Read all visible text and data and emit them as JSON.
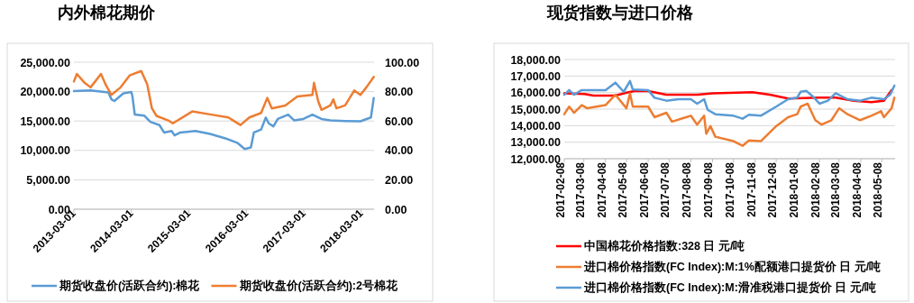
{
  "chart_data": [
    {
      "type": "line",
      "title": "内外棉花期价",
      "xlim": [
        "2013-03-01",
        "2018-05-22"
      ],
      "ylim": [
        0,
        25000
      ],
      "y2lim": [
        0,
        100
      ],
      "grid": "y",
      "legend": "bottom",
      "xticks": [
        {
          "value": "2013-03-01",
          "label": "2013-03-01"
        },
        {
          "value": "2014-03-01",
          "label": "2014-03-01"
        },
        {
          "value": "2015-03-01",
          "label": "2015-03-01"
        },
        {
          "value": "2016-03-01",
          "label": "2016-03-01"
        },
        {
          "value": "2017-03-01",
          "label": "2017-03-01"
        },
        {
          "value": "2018-03-01",
          "label": "2018-03-01"
        }
      ],
      "yticks": [
        {
          "value": 0,
          "label": "0.00"
        },
        {
          "value": 5000,
          "label": "5,000.00"
        },
        {
          "value": 10000,
          "label": "10,000.00"
        },
        {
          "value": 15000,
          "label": "15,000.00"
        },
        {
          "value": 20000,
          "label": "20,000.00"
        },
        {
          "value": 25000,
          "label": "25,000.00"
        }
      ],
      "y2ticks": [
        {
          "value": 0,
          "label": "0.00"
        },
        {
          "value": 20,
          "label": "20.00"
        },
        {
          "value": 40,
          "label": "40.00"
        },
        {
          "value": 60,
          "label": "60.00"
        },
        {
          "value": 80,
          "label": "80.00"
        },
        {
          "value": 100,
          "label": "100.00"
        }
      ],
      "series": [
        {
          "name": "期货收盘价(活跃合约):棉花",
          "color": "#5b9bd5",
          "x": [
            "2013-03-01",
            "2013-06-15",
            "2013-10-06",
            "2013-10-25",
            "2013-11-13",
            "2014-01-10",
            "2014-03-01",
            "2014-03-08",
            "2014-03-23",
            "2014-05-23",
            "2014-06-30",
            "2014-08-27",
            "2014-09-25",
            "2014-11-12",
            "2014-12-01",
            "2015-01-06",
            "2015-04-12",
            "2015-07-15",
            "2015-10-20",
            "2016-01-03",
            "2016-02-20",
            "2016-03-30",
            "2016-04-18",
            "2016-06-03",
            "2016-07-03",
            "2016-07-21",
            "2016-08-20",
            "2016-09-17",
            "2016-11-22",
            "2016-12-31",
            "2017-02-26",
            "2017-04-25",
            "2017-06-22",
            "2017-08-17",
            "2017-11-19",
            "2018-02-24",
            "2018-05-02",
            "2018-05-20"
          ],
          "values": [
            20100,
            20200,
            19850,
            18700,
            18400,
            19700,
            19950,
            19200,
            16100,
            15900,
            14850,
            14300,
            13050,
            13300,
            12550,
            13050,
            13300,
            12800,
            12050,
            11300,
            10250,
            10500,
            13050,
            13550,
            15600,
            14600,
            14100,
            15350,
            16100,
            15100,
            15350,
            16100,
            15350,
            15100,
            15000,
            14950,
            15600,
            18900
          ]
        },
        {
          "name": "期货收盘价(活跃合约):2号棉花",
          "color": "#ed7d31",
          "axis": "y2",
          "x": [
            "2013-03-01",
            "2013-03-20",
            "2013-05-08",
            "2013-06-15",
            "2013-08-20",
            "2013-09-18",
            "2013-10-25",
            "2013-12-23",
            "2014-02-18",
            "2014-05-03",
            "2014-06-10",
            "2014-07-10",
            "2014-08-08",
            "2014-10-22",
            "2014-11-20",
            "2015-03-23",
            "2015-07-15",
            "2015-11-08",
            "2016-01-24",
            "2016-03-20",
            "2016-06-03",
            "2016-07-12",
            "2016-08-10",
            "2016-11-04",
            "2017-01-19",
            "2017-04-25",
            "2017-05-05",
            "2017-06-01",
            "2017-06-22",
            "2017-08-17",
            "2017-09-05",
            "2017-09-25",
            "2017-11-19",
            "2018-01-16",
            "2018-02-24",
            "2018-04-03",
            "2018-05-20"
          ],
          "values": [
            86.9,
            92,
            86,
            82.9,
            92,
            84.9,
            77.8,
            82.9,
            91,
            94,
            84.9,
            68.6,
            63.5,
            60.4,
            58.4,
            66.5,
            64.5,
            62.4,
            57.3,
            62.4,
            65.5,
            75.7,
            68.6,
            70.6,
            76.7,
            77.8,
            86,
            73.5,
            67.6,
            70.6,
            74.7,
            68.6,
            70.6,
            80.8,
            77.8,
            82.9,
            90
          ]
        }
      ]
    },
    {
      "type": "line",
      "title": "现货指数与进口价格",
      "xlim": [
        "2017-02-08",
        "2018-05-27"
      ],
      "ylim": [
        12000,
        18000
      ],
      "grid": "y",
      "legend": "bottom",
      "xticks": [
        {
          "value": "2017-02-08",
          "label": "2017-02-08"
        },
        {
          "value": "2017-03-08",
          "label": "2017-03-08"
        },
        {
          "value": "2017-04-08",
          "label": "2017-04-08"
        },
        {
          "value": "2017-05-08",
          "label": "2017-05-08"
        },
        {
          "value": "2017-06-08",
          "label": "2017-06-08"
        },
        {
          "value": "2017-07-08",
          "label": "2017-07-08"
        },
        {
          "value": "2017-08-08",
          "label": "2017-08-08"
        },
        {
          "value": "2017-09-08",
          "label": "2017-09-08"
        },
        {
          "value": "2017-10-08",
          "label": "2017-10-08"
        },
        {
          "value": "2017-11-08",
          "label": "2017-11-08"
        },
        {
          "value": "2017-12-08",
          "label": "2017-12-08"
        },
        {
          "value": "2018-01-08",
          "label": "2018-01-08"
        },
        {
          "value": "2018-02-08",
          "label": "2018-02-08"
        },
        {
          "value": "2018-03-08",
          "label": "2018-03-08"
        },
        {
          "value": "2018-04-08",
          "label": "2018-04-08"
        },
        {
          "value": "2018-05-08",
          "label": "2018-05-08"
        }
      ],
      "yticks": [
        {
          "value": 12000,
          "label": "12,000.00"
        },
        {
          "value": 13000,
          "label": "13,000.00"
        },
        {
          "value": 14000,
          "label": "14,000.00"
        },
        {
          "value": 15000,
          "label": "15,000.00"
        },
        {
          "value": 16000,
          "label": "16,000.00"
        },
        {
          "value": 17000,
          "label": "17,000.00"
        },
        {
          "value": 18000,
          "label": "18,000.00"
        }
      ],
      "series": [
        {
          "name": "中国棉花价格指数:328 日 元/吨",
          "color": "#ff0000",
          "x": [
            "2017-02-08",
            "2017-03-09",
            "2017-03-22",
            "2017-04-22",
            "2017-05-08",
            "2017-05-21",
            "2017-06-08",
            "2017-07-04",
            "2017-08-17",
            "2017-09-08",
            "2017-11-04",
            "2017-11-29",
            "2017-12-25",
            "2018-02-08",
            "2018-03-03",
            "2018-03-29",
            "2018-04-23",
            "2018-05-11",
            "2018-05-22"
          ],
          "values": [
            15960,
            15910,
            15820,
            15820,
            16000,
            16110,
            16090,
            15870,
            15870,
            15960,
            16020,
            15870,
            15640,
            15690,
            15690,
            15510,
            15420,
            15510,
            16150
          ]
        },
        {
          "name": "进口棉价格指数(FC Index):M:1%配额港口提货价 日 元/吨",
          "color": "#ed7d31",
          "x": [
            "2017-02-08",
            "2017-02-15",
            "2017-02-22",
            "2017-03-05",
            "2017-03-13",
            "2017-04-08",
            "2017-04-22",
            "2017-05-08",
            "2017-05-13",
            "2017-05-17",
            "2017-06-08",
            "2017-06-17",
            "2017-07-04",
            "2017-07-12",
            "2017-08-08",
            "2017-08-17",
            "2017-08-27",
            "2017-08-30",
            "2017-09-05",
            "2017-09-12",
            "2017-10-08",
            "2017-10-21",
            "2017-10-30",
            "2017-11-16",
            "2017-12-08",
            "2017-12-25",
            "2018-01-07",
            "2018-01-12",
            "2018-01-22",
            "2018-02-02",
            "2018-02-11",
            "2018-02-25",
            "2018-03-08",
            "2018-03-20",
            "2018-04-07",
            "2018-04-23",
            "2018-05-07",
            "2018-05-11",
            "2018-05-22",
            "2018-05-26"
          ],
          "values": [
            14690,
            15150,
            14780,
            15240,
            15050,
            15240,
            15870,
            15050,
            15960,
            15150,
            15150,
            14510,
            14780,
            14240,
            14600,
            14060,
            14600,
            13510,
            13970,
            13330,
            13060,
            12780,
            13100,
            13060,
            13970,
            14510,
            14690,
            15150,
            15330,
            14330,
            14060,
            14330,
            15050,
            14690,
            14330,
            14600,
            14870,
            14510,
            15050,
            15690
          ]
        },
        {
          "name": "进口棉价格指数(FC Index):M:滑准税港口提货价 日 元/吨",
          "color": "#5b9bd5",
          "x": [
            "2017-02-08",
            "2017-02-15",
            "2017-02-22",
            "2017-03-05",
            "2017-04-08",
            "2017-04-22",
            "2017-05-04",
            "2017-05-13",
            "2017-05-17",
            "2017-06-08",
            "2017-06-17",
            "2017-07-04",
            "2017-07-21",
            "2017-08-08",
            "2017-08-17",
            "2017-08-27",
            "2017-09-01",
            "2017-09-12",
            "2017-10-08",
            "2017-10-21",
            "2017-10-30",
            "2017-11-16",
            "2017-12-08",
            "2017-12-25",
            "2018-01-07",
            "2018-01-12",
            "2018-01-20",
            "2018-01-29",
            "2018-02-08",
            "2018-02-20",
            "2018-03-03",
            "2018-03-20",
            "2018-04-07",
            "2018-04-23",
            "2018-05-11",
            "2018-05-20",
            "2018-05-26"
          ],
          "values": [
            15870,
            16150,
            15870,
            16150,
            16150,
            16600,
            16050,
            16700,
            16180,
            16150,
            15690,
            15510,
            15600,
            15600,
            15330,
            15600,
            14960,
            14690,
            14600,
            14420,
            14660,
            14600,
            15150,
            15600,
            15690,
            16050,
            16110,
            15780,
            15330,
            15510,
            15960,
            15600,
            15510,
            15690,
            15600,
            15870,
            16420
          ]
        }
      ]
    }
  ]
}
